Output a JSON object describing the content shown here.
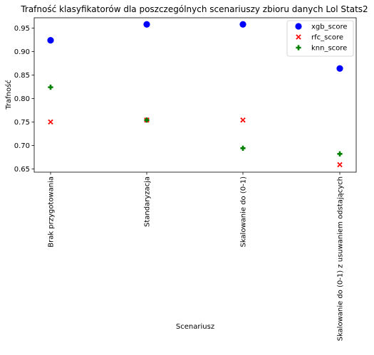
{
  "chart_data": {
    "type": "scatter",
    "title": "Trafność klasyfikatorów dla poszczególnych scenariuszy zbioru danych Lol Stats2",
    "xlabel": "Scenariusz",
    "ylabel": "Trafność",
    "categories": [
      "Brak przygotowania",
      "Standaryzacja",
      "Skalowanie do (0-1)",
      "Skalowanie do (0-1) z usuwaniem odstających"
    ],
    "ylim": [
      0.643,
      0.972
    ],
    "yticks": [
      0.65,
      0.7,
      0.75,
      0.8,
      0.85,
      0.9,
      0.95
    ],
    "ytick_labels": [
      "0.65",
      "0.70",
      "0.75",
      "0.80",
      "0.85",
      "0.90",
      "0.95"
    ],
    "grid": false,
    "legend_position": "top-right",
    "series": [
      {
        "name": "xgb_score",
        "marker": "circle",
        "color": "#0000ff",
        "values": [
          0.924,
          0.958,
          0.958,
          0.864
        ]
      },
      {
        "name": "rfc_score",
        "marker": "x",
        "color": "#ff0000",
        "values": [
          0.75,
          0.754,
          0.754,
          0.659
        ]
      },
      {
        "name": "knn_score",
        "marker": "plus",
        "color": "#008000",
        "values": [
          0.824,
          0.754,
          0.694,
          0.682
        ]
      }
    ]
  }
}
